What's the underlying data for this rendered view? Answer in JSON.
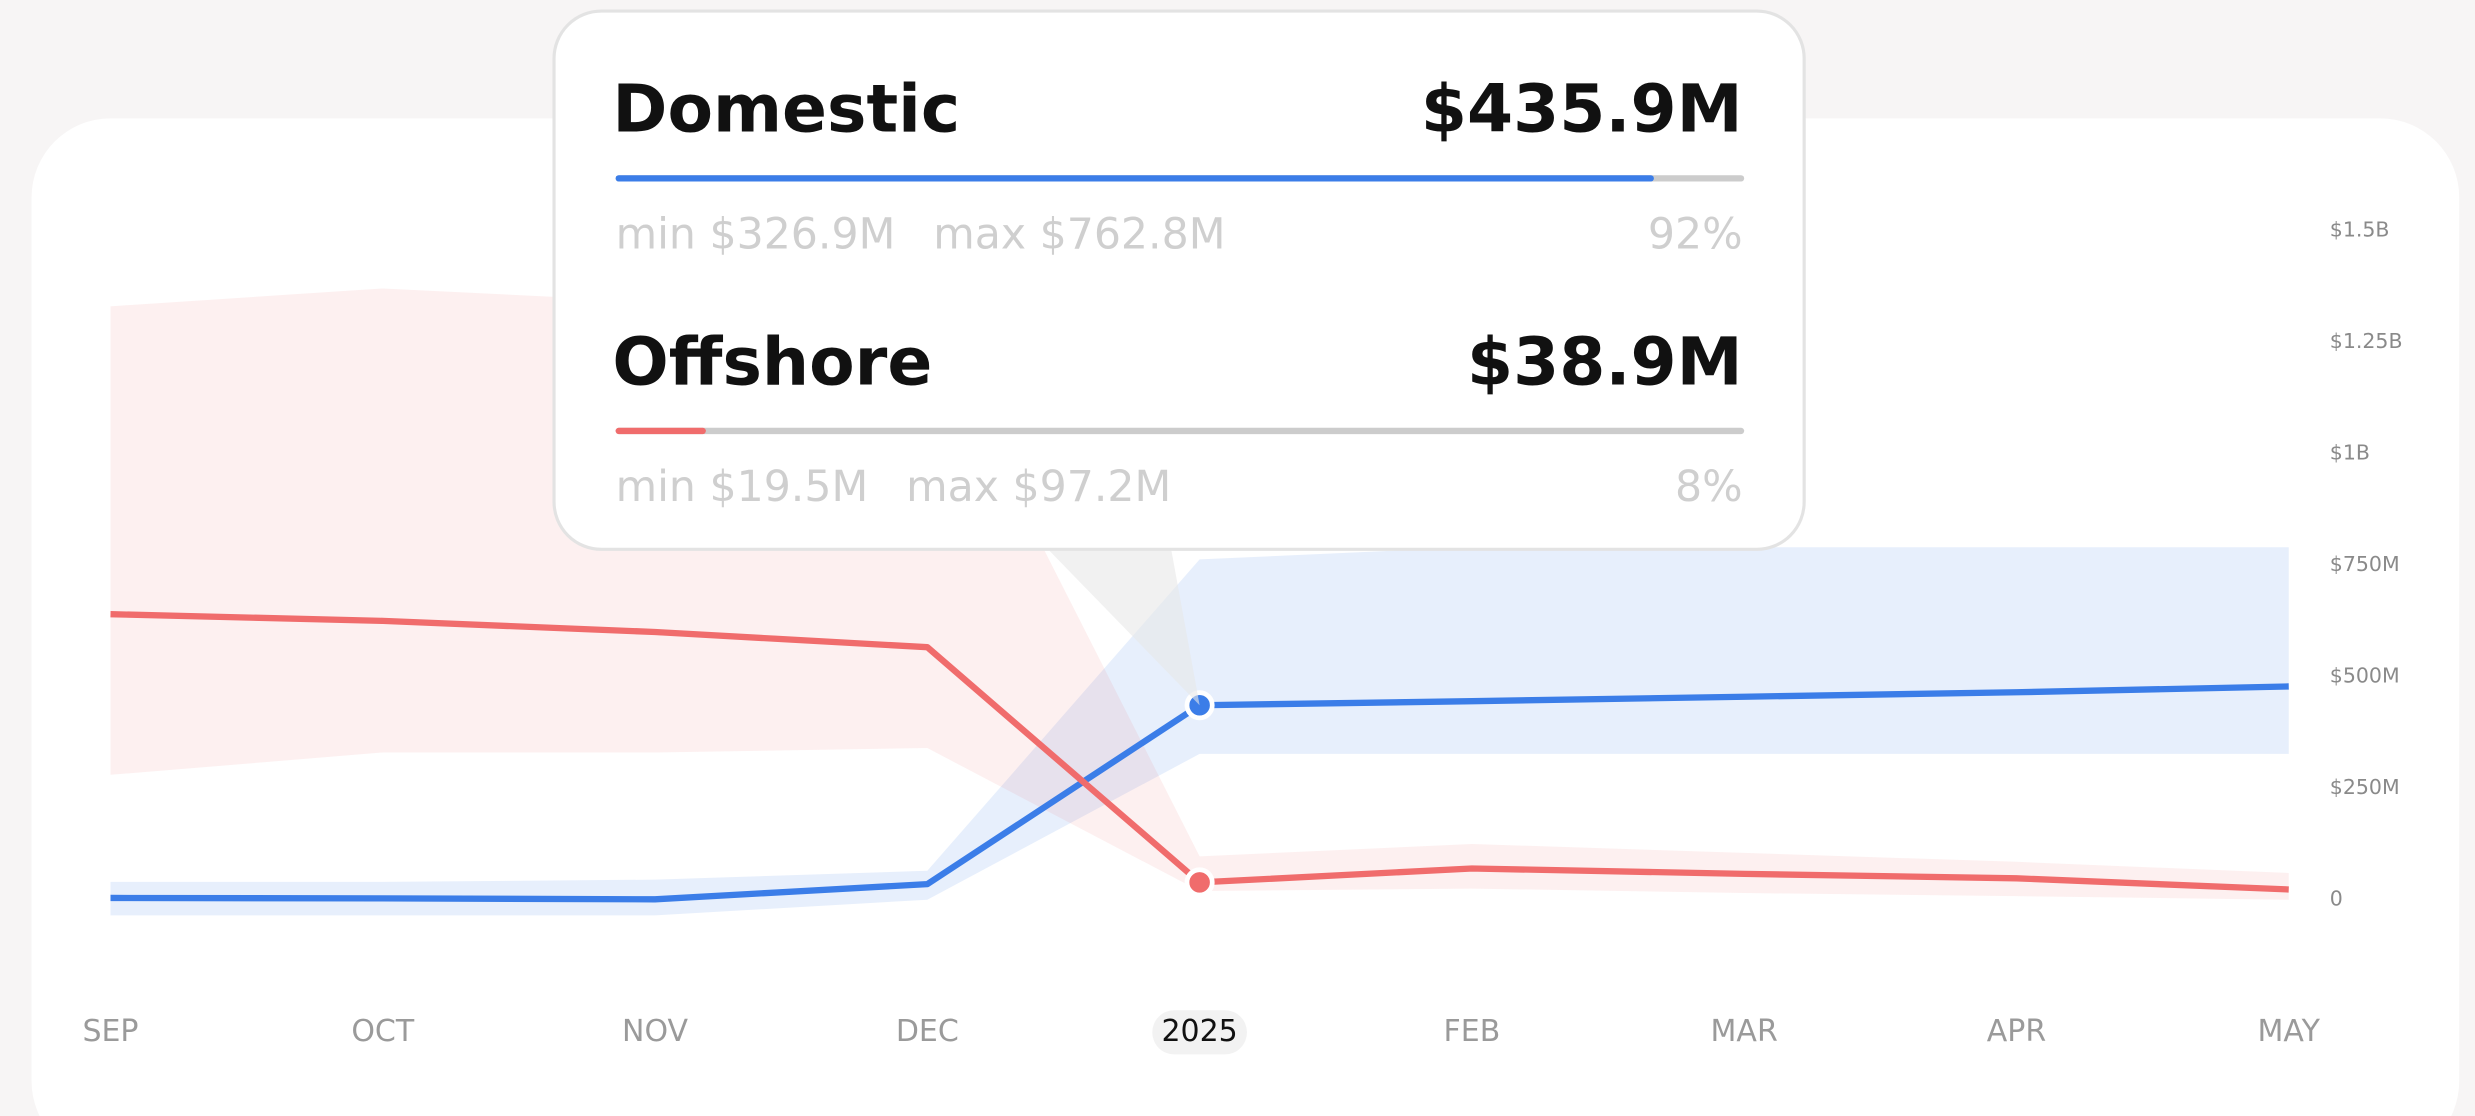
{
  "chart_data": {
    "type": "line",
    "categories": [
      "SEP",
      "OCT",
      "NOV",
      "DEC",
      "2025",
      "FEB",
      "MAR",
      "APR",
      "MAY"
    ],
    "active_index": 4,
    "ylim": [
      0,
      1500
    ],
    "yticks": [
      0,
      {
        "value": 250,
        "label": "$250M"
      },
      {
        "value": 500,
        "label": "$500M"
      },
      {
        "value": 750,
        "label": "$750M"
      },
      {
        "value": 1000,
        "label": "$1B"
      },
      {
        "value": 1250,
        "label": "$1.25B"
      },
      {
        "value": 1500,
        "label": "$1.5B"
      }
    ],
    "series": [
      {
        "name": "Domestic",
        "color": "#3b7de8",
        "values": [
          4,
          3,
          1,
          35,
          435.9,
          445,
          455,
          465,
          478
        ],
        "min": [
          -35,
          -35,
          -35,
          0,
          326.9,
          326.9,
          326.9,
          326.9,
          326.9
        ],
        "max": [
          40,
          40,
          45,
          65,
          762.8,
          790,
          790,
          790,
          790
        ]
      },
      {
        "name": "Offshore",
        "color": "#f06c6c",
        "values": [
          640,
          625,
          600,
          566,
          38.9,
          70,
          58,
          48,
          23
        ],
        "min": [
          280,
          330,
          330,
          340,
          19.5,
          25,
          15,
          8,
          0
        ],
        "max": [
          1330,
          1370,
          1340,
          1300,
          97.2,
          125,
          105,
          85,
          60
        ]
      }
    ],
    "tooltip": {
      "rows": [
        {
          "value_label": "$435.9M",
          "min_label": "min $326.9M",
          "max_label": "max $762.8M",
          "share": 92,
          "share_label": "92%"
        },
        {
          "value_label": "$38.9M",
          "min_label": "min $19.5M",
          "max_label": "max $97.2M",
          "share": 8,
          "share_label": "8%"
        }
      ]
    }
  }
}
